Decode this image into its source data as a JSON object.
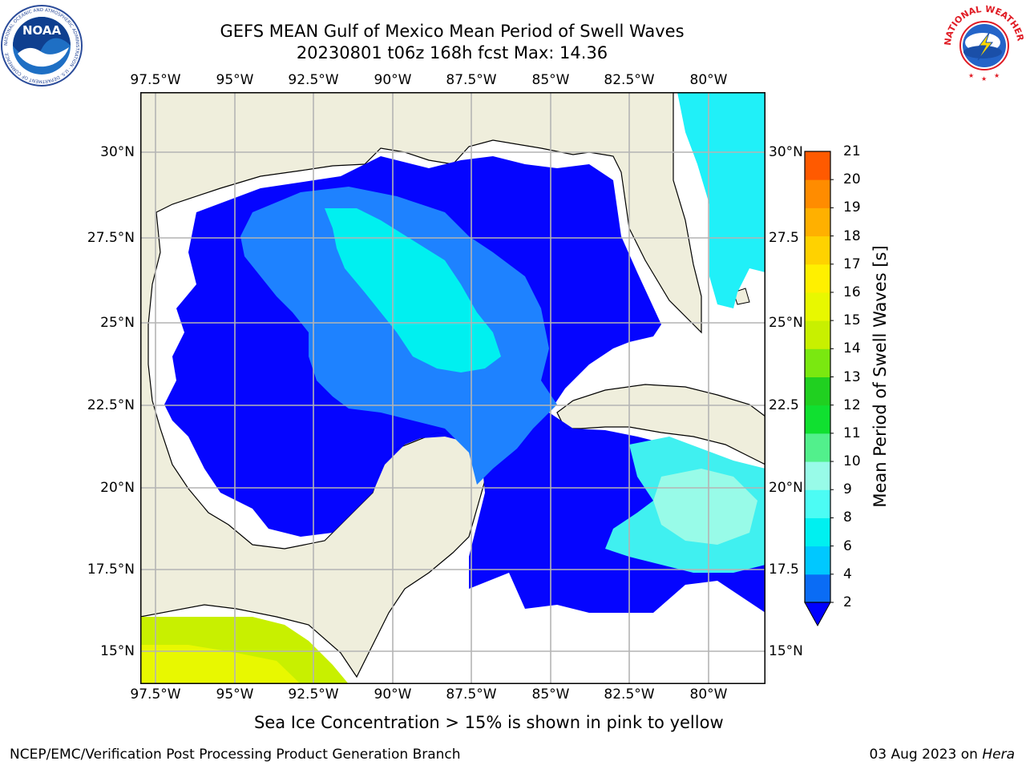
{
  "title": {
    "line1": "GEFS MEAN Gulf of Mexico Mean Period of Swell Waves",
    "line2": "20230801 t06z 168h fcst   Max: 14.36"
  },
  "map": {
    "lon_labels": [
      "97.5°W",
      "95°W",
      "92.5°W",
      "90°W",
      "87.5°W",
      "85°W",
      "82.5°W",
      "80°W"
    ],
    "lat_labels_left": [
      "30°N",
      "27.5°N",
      "25°N",
      "22.5°N",
      "20°N",
      "17.5°N",
      "15°N"
    ],
    "lat_labels_right": [
      "30°N",
      "27.5",
      "25°N",
      "22.5",
      "20°N",
      "17.5",
      "15°N"
    ],
    "land_color": "#efeedc",
    "ocean_color": "#ffffff",
    "grid_color": "#b4b4b4"
  },
  "colorbar": {
    "label": "Mean Period of Swell Waves [s]",
    "ticks": [
      "2",
      "4",
      "6",
      "8",
      "9",
      "10",
      "11",
      "12",
      "13",
      "14",
      "15",
      "16",
      "17",
      "18",
      "19",
      "20",
      "21"
    ],
    "colors": [
      "#0a6cf5",
      "#00c8ff",
      "#00f0f0",
      "#4cfcf4",
      "#98fbe8",
      "#52f08c",
      "#10e030",
      "#20d020",
      "#7ae810",
      "#c8f000",
      "#e8f800",
      "#fff000",
      "#ffd200",
      "#ffb000",
      "#ff8c00",
      "#ff5a00",
      "#ff2a00",
      "#ff0000"
    ],
    "extend_color": "#0000ff"
  },
  "logos": {
    "left_text": "NOAA",
    "left_ring": "NATIONAL OCEANIC AND ATMOSPHERIC ADMINISTRATION · U.S. DEPARTMENT OF COMMERCE",
    "right_ring": "NATIONAL WEATHER SERVICE"
  },
  "footer": {
    "note": "Sea Ice Concentration > 15% is shown in pink to yellow",
    "left": "NCEP/EMC/Verification Post Processing Product Generation Branch",
    "right_prefix": "03 Aug 2023 on ",
    "right_host": "Hera"
  }
}
